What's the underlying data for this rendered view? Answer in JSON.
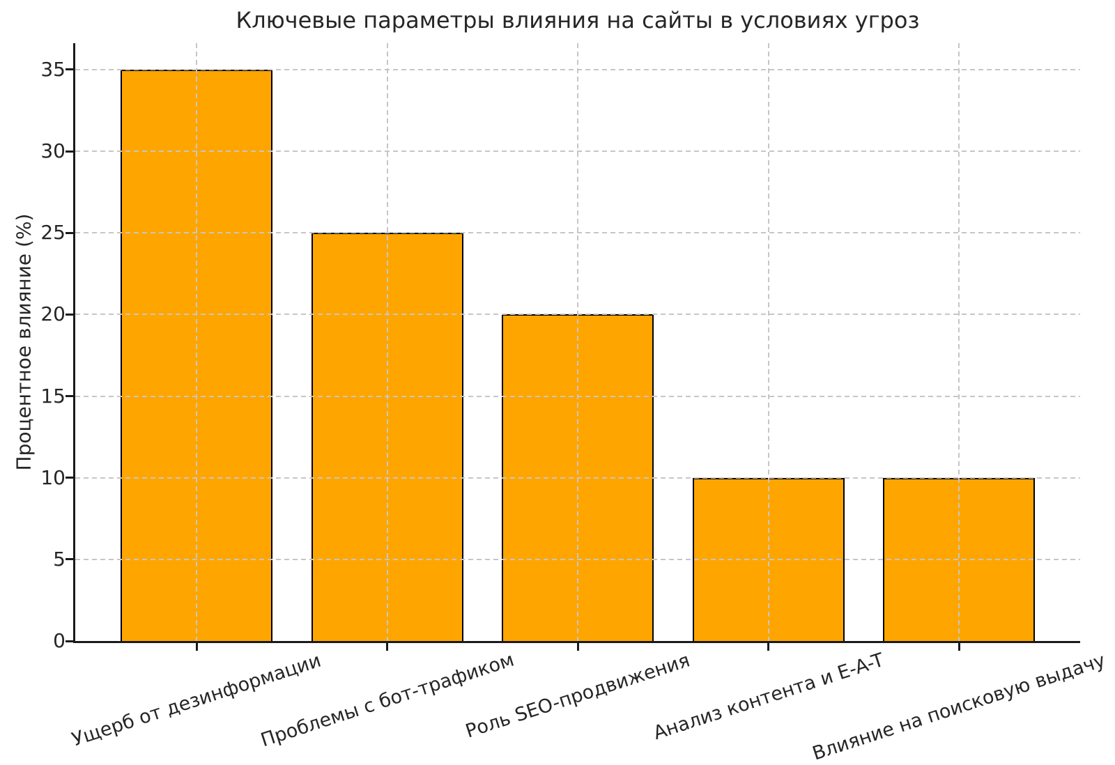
{
  "chart_data": {
    "type": "bar",
    "title": "Ключевые параметры влияния на сайты в условиях угроз",
    "ylabel": "Процентное влияние (%)",
    "xlabel": "",
    "categories": [
      "Ущерб от дезинформации",
      "Проблемы с бот-трафиком",
      "Роль SEO-продвижения",
      "Анализ контента и E-A-T",
      "Влияние на поисковую выдачу"
    ],
    "values": [
      35,
      25,
      20,
      10,
      10
    ],
    "yticks": [
      0,
      5,
      10,
      15,
      20,
      25,
      30,
      35
    ],
    "ylim": [
      0,
      36.6
    ],
    "grid": true,
    "grid_style": "dashed",
    "grid_over_bars": true,
    "legend": false,
    "x_tick_rotation_deg": 18,
    "colors": {
      "bar_fill": "#FFA500",
      "bar_edge": "#000000",
      "grid": "#c6c6c6",
      "text": "#262626",
      "spine": "#1a1a1a",
      "background": "#ffffff"
    }
  }
}
